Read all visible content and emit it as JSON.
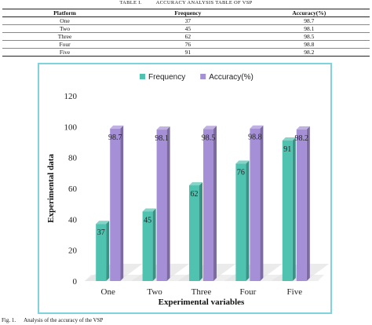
{
  "table": {
    "caption_number": "TABLE I.",
    "caption_title": "ACCURACY ANALYSIS TABLE OF VSP",
    "headers": [
      "Platform",
      "Frequency",
      "Accuracy(%)"
    ],
    "rows": [
      [
        "One",
        "37",
        "98.7"
      ],
      [
        "Two",
        "45",
        "98.1"
      ],
      [
        "Three",
        "62",
        "98.5"
      ],
      [
        "Four",
        "76",
        "98.8"
      ],
      [
        "Five",
        "91",
        "98.2"
      ]
    ]
  },
  "figure": {
    "caption_number": "Fig. 1.",
    "caption_title": "Analysis of the accuracy of the VSP"
  },
  "chart_data": {
    "type": "bar",
    "categories": [
      "One",
      "Two",
      "Three",
      "Four",
      "Five"
    ],
    "series": [
      {
        "name": "Frequency",
        "values": [
          37,
          45,
          62,
          76,
          91
        ],
        "color": "#4fc2b0"
      },
      {
        "name": "Accuracy(%)",
        "values": [
          98.7,
          98.1,
          98.5,
          98.8,
          98.2
        ],
        "color": "#a58fd6"
      }
    ],
    "data_labels": [
      [
        "37",
        "45",
        "62",
        "76",
        "91"
      ],
      [
        "98.7",
        "98.1",
        "98.5",
        "98.8",
        "98.2"
      ]
    ],
    "xlabel": "Experimental variables",
    "ylabel": "Experimental data",
    "ylim": [
      0,
      120
    ],
    "yticks": [
      "0",
      "20",
      "40",
      "60",
      "80",
      "100",
      "120"
    ],
    "legend_position": "top-center",
    "grid": false,
    "style": "3d-cylinder"
  }
}
